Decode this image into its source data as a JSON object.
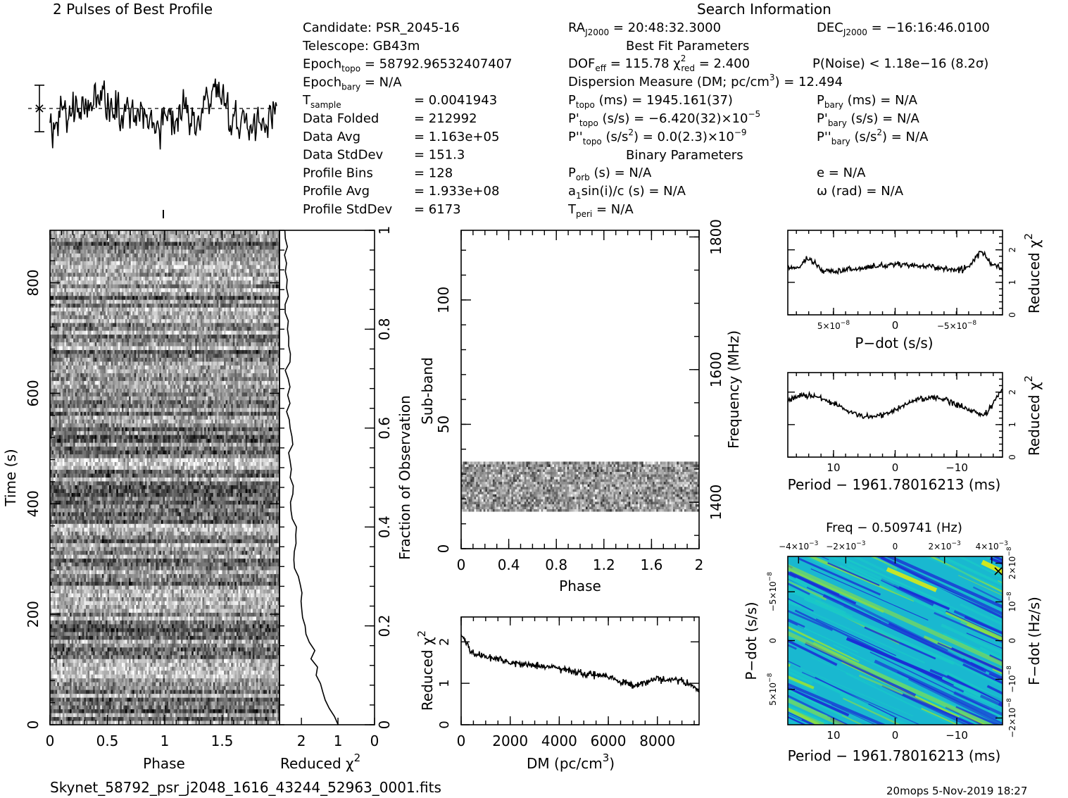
{
  "titles": {
    "profile_title": "2 Pulses of Best Profile",
    "search_title": "Search Information",
    "best_fit_title": "Best Fit Parameters",
    "binary_title": "Binary Parameters",
    "footer_file": "Skynet_58792_psr_j2048_1616_43244_52963_0001.fits",
    "footer_stamp": "20mops  5-Nov-2019 18:27"
  },
  "info_left": [
    {
      "label": "Candidate:  PSR_2045-16",
      "sub": "",
      "rest": ""
    },
    {
      "label": "Telescope:  GB43m",
      "sub": "",
      "rest": ""
    },
    {
      "label": "Epoch",
      "sub": "topo",
      "rest": " = 58792.96532407407"
    },
    {
      "label": "Epoch",
      "sub": "bary",
      "rest": " = N/A"
    },
    {
      "label": "T",
      "sub": "sample",
      "rest": ""
    },
    {
      "label": "Data Folded",
      "sub": "",
      "rest": ""
    },
    {
      "label": "Data Avg",
      "sub": "",
      "rest": ""
    },
    {
      "label": "Data StdDev",
      "sub": "",
      "rest": ""
    },
    {
      "label": "Profile Bins",
      "sub": "",
      "rest": ""
    },
    {
      "label": "Profile Avg",
      "sub": "",
      "rest": ""
    },
    {
      "label": "Profile StdDev",
      "sub": "",
      "rest": ""
    }
  ],
  "info_left_values": [
    "",
    "",
    "",
    "",
    "=   0.0041943",
    "=   212992",
    "=   1.163e+05",
    "=   151.3",
    "=   128",
    "=   1.933e+08",
    "=   6173"
  ],
  "info_right": {
    "ra": "RA",
    "ra_sub": "J2000",
    "ra_val": " = 20:48:32.3000",
    "dec": "DEC",
    "dec_sub": "J2000",
    "dec_val": " = −16:16:46.0100",
    "dof": "DOF",
    "dof_sub": "eff",
    "dof_val": " = 115.78  χ",
    "chi_sup": "2",
    "chi_sub": "red",
    "chi_val": " = 2.400",
    "pnoise": "P(Noise) < 1.18e−16  (8.2σ)",
    "dm": "Dispersion Measure (DM; pc/cm",
    "dm_sup": "3",
    "dm_val": ") = 12.494",
    "ptopo": "P",
    "ptopo_sub": "topo",
    "ptopo_val": " (ms) =  1945.161(37)",
    "pbary": "P",
    "pbary_sub": "bary",
    "pbary_val": " (ms) = N/A",
    "pdtopo": "P'",
    "pdtopo_sub": "topo",
    "pdtopo_val": " (s/s) = −6.420(32)×10",
    "pdtopo_exp": "−5",
    "pdbary": "P'",
    "pdbary_sub": "bary",
    "pdbary_val": " (s/s) = N/A",
    "pddtopo": "P''",
    "pddtopo_sub": "topo",
    "pddtopo_val": " (s/s",
    "pddtopo_sup": "2",
    "pddtopo_val2": ") = 0.0(2.3)×10",
    "pddtopo_exp": "−9",
    "pddbary": "P''",
    "pddbary_sub": "bary",
    "pddbary_val": " (s/s",
    "pddbary_sup": "2",
    "pddbary_val2": ") = N/A",
    "porb": "P",
    "porb_sub": "orb",
    "porb_val": " (s) = N/A",
    "ecc": "e = N/A",
    "asini": "a",
    "asini_sub": "1",
    "asini_val": "sin(i)/c (s) = N/A",
    "omega": "ω (rad) = N/A",
    "tperi": "T",
    "tperi_sub": "peri",
    "tperi_val": " = N/A"
  },
  "chart_data": [
    {
      "id": "profile",
      "type": "line",
      "title": "2 Pulses of Best Profile",
      "bins": 256,
      "xlim": [
        0,
        2
      ]
    },
    {
      "id": "time_phase",
      "type": "heatmap",
      "xlabel": "Phase",
      "ylabel": "Time (s)",
      "xticks": [
        "0",
        "0.5",
        "1",
        "1.5"
      ],
      "xtick_values": [
        0,
        0.5,
        1,
        1.5
      ],
      "yticks": [
        "0",
        "200",
        "400",
        "600",
        "800"
      ],
      "ytick_values": [
        0,
        200,
        400,
        600,
        800
      ],
      "xlim": [
        0,
        2
      ],
      "ylim": [
        0,
        895
      ]
    },
    {
      "id": "time_chi",
      "type": "line",
      "xlabel": "Reduced χ",
      "xlabel_sup": "2",
      "ylabel": "Fraction of Observation",
      "xticks": [
        "2",
        "1",
        "0"
      ],
      "xtick_values": [
        2,
        1,
        0
      ],
      "yticks": [
        "0",
        "0.2",
        "0.4",
        "0.6",
        "0.8",
        "1"
      ],
      "ytick_values": [
        0,
        0.2,
        0.4,
        0.6,
        0.8,
        1
      ],
      "xlim": [
        2.6,
        0
      ]
    },
    {
      "id": "subband_phase",
      "type": "heatmap",
      "xlabel": "Phase",
      "ylabel": "Sub-band",
      "y2label": "Frequency (MHz)",
      "xticks": [
        "0",
        "0.4",
        "0.8",
        "1.2",
        "1.6",
        "2"
      ],
      "xtick_values": [
        0,
        0.4,
        0.8,
        1.2,
        1.6,
        2
      ],
      "yticks": [
        "0",
        "50",
        "100"
      ],
      "ytick_values": [
        0,
        50,
        100
      ],
      "y2ticks": [
        "1400",
        "1600",
        "1800"
      ],
      "y2tick_values": [
        1400,
        1600,
        1800
      ],
      "xlim": [
        0,
        2
      ],
      "ylim": [
        0,
        128
      ],
      "band_range": [
        15,
        35
      ]
    },
    {
      "id": "dm_chi",
      "type": "line",
      "xlabel": "DM (pc/cm",
      "xlabel_sup": "3",
      "xlabel_end": ")",
      "ylabel": "Reduced χ",
      "ylabel_sup": "2",
      "xticks": [
        "0",
        "2000",
        "4000",
        "6000",
        "8000"
      ],
      "xtick_values": [
        0,
        2000,
        4000,
        6000,
        8000
      ],
      "yticks": [
        "0",
        "1",
        "2"
      ],
      "ytick_values": [
        0,
        1,
        2
      ],
      "xlim": [
        0,
        9700
      ],
      "ylim": [
        0,
        2.6
      ],
      "trend": [
        [
          0,
          2.2
        ],
        [
          400,
          1.75
        ],
        [
          2000,
          1.5
        ],
        [
          4000,
          1.35
        ],
        [
          6000,
          1.15
        ],
        [
          7000,
          0.95
        ],
        [
          8000,
          1.1
        ],
        [
          9000,
          1.05
        ],
        [
          9700,
          0.85
        ]
      ]
    },
    {
      "id": "pdot_chi",
      "type": "line",
      "xlabel": "P−dot (s/s)",
      "ylabel": "Reduced χ",
      "ylabel_sup": "2",
      "xticks": [
        "5×10",
        "0",
        "−5×10"
      ],
      "xtick_exp": "−8",
      "yticks": [
        "0",
        "1",
        "2"
      ],
      "ytick_values": [
        0,
        1,
        2
      ],
      "ylim": [
        0,
        2.6
      ]
    },
    {
      "id": "period_chi",
      "type": "line",
      "xlabel": "Period − 1961.78016213 (ms)",
      "ylabel": "Reduced χ",
      "ylabel_sup": "2",
      "xticks": [
        "10",
        "0",
        "−10"
      ],
      "yticks": [
        "0",
        "1",
        "2"
      ],
      "ytick_values": [
        0,
        1,
        2
      ],
      "ylim": [
        0,
        2.6
      ]
    },
    {
      "id": "ppdot_map",
      "type": "heatmap",
      "title": "Freq − 0.509741 (Hz)",
      "xlabel": "Period − 1961.78016213 (ms)",
      "ylabel": "P−dot (s/s)",
      "y2label": "F−dot (Hz/s)",
      "xticks": [
        "10",
        "0",
        "−10"
      ],
      "x2ticks": [
        "−4×10",
        "−2×10",
        "0",
        "2×10",
        "4×10"
      ],
      "x2tick_exp": "−3",
      "yticks": [
        "5×10",
        "0",
        "−5×10"
      ],
      "ytick_exp": "−8",
      "y2ticks": [
        "−2×10",
        "−10",
        "0",
        "10",
        "2×10"
      ],
      "y2tick_exp": "−8"
    }
  ],
  "colors": {
    "map_low": "#1a2fd6",
    "map_mid": "#19c8c8",
    "map_high": "#8fe040",
    "map_peak": "#f0f000"
  }
}
